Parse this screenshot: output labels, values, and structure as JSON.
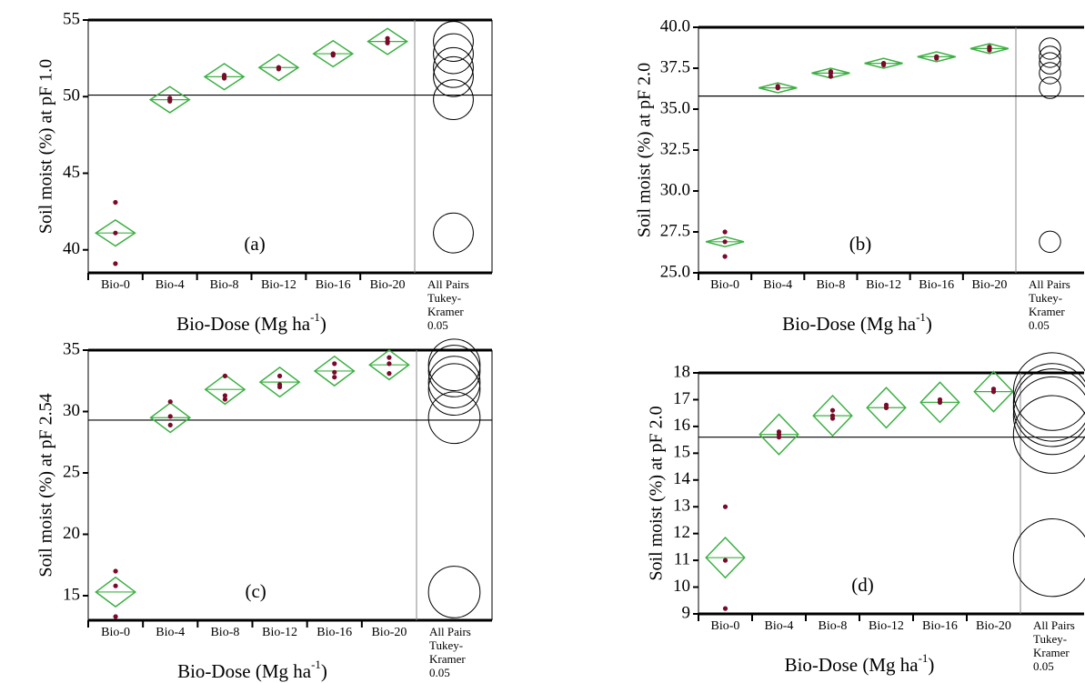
{
  "chart_data": [
    {
      "type": "oneway",
      "ylabel": "Soil moist (%) at pF 1.0",
      "xlabel": "Bio-Dose (Mg ha",
      "xlabel_sup": "-1",
      "xlabel_end": ")",
      "panel_label": "(a)",
      "categories": [
        "Bio-0",
        "Bio-4",
        "Bio-8",
        "Bio-12",
        "Bio-16",
        "Bio-20"
      ],
      "comparison_label": [
        "All Pairs",
        "Tukey-",
        "Kramer",
        "0.05"
      ],
      "means": [
        41.1,
        49.8,
        51.3,
        51.9,
        52.8,
        53.6
      ],
      "ci_half": [
        0.85,
        0.85,
        0.85,
        0.85,
        0.85,
        0.85
      ],
      "points": [
        [
          43.1,
          41.1,
          39.1
        ],
        [
          49.8,
          49.7,
          49.9
        ],
        [
          51.2,
          51.3,
          51.4
        ],
        [
          51.8,
          51.9,
          51.9
        ],
        [
          52.7,
          52.8,
          52.8
        ],
        [
          53.5,
          53.6,
          53.8
        ]
      ],
      "grand_mean": 50.1,
      "circle_radius": 1.3,
      "ylim": [
        38.5,
        55
      ],
      "yticks": [
        40,
        45,
        50,
        55
      ],
      "diamond_color": "#3cb043",
      "point_color": "#7a0a2a"
    },
    {
      "type": "oneway",
      "ylabel": "Soil moist (%) at pF 2.0",
      "xlabel": "Bio-Dose (Mg ha",
      "xlabel_sup": "-1",
      "xlabel_end": ")",
      "panel_label": "(b)",
      "categories": [
        "Bio-0",
        "Bio-4",
        "Bio-8",
        "Bio-12",
        "Bio-16",
        "Bio-20"
      ],
      "comparison_label": [
        "All Pairs",
        "Tukey-",
        "Kramer",
        "0.05"
      ],
      "means": [
        26.9,
        36.3,
        37.2,
        37.8,
        38.2,
        38.7
      ],
      "ci_half": [
        0.3,
        0.3,
        0.3,
        0.3,
        0.3,
        0.3
      ],
      "points": [
        [
          27.5,
          26.9,
          26.0
        ],
        [
          36.3,
          36.3,
          36.4
        ],
        [
          37.0,
          37.2,
          37.3
        ],
        [
          37.7,
          37.8,
          37.8
        ],
        [
          38.1,
          38.2,
          38.2
        ],
        [
          38.6,
          38.7,
          38.8
        ]
      ],
      "grand_mean": 35.8,
      "circle_radius": 0.65,
      "ylim": [
        25,
        40
      ],
      "yticks": [
        {
          "value": 25,
          "label": "25.0"
        },
        {
          "value": 27.5,
          "label": "27.5"
        },
        {
          "value": 30,
          "label": "30.0"
        },
        {
          "value": 32.5,
          "label": "32.5"
        },
        {
          "value": 35,
          "label": "35.0"
        },
        {
          "value": 37.5,
          "label": "37.5"
        },
        {
          "value": 40,
          "label": "40.0"
        }
      ],
      "diamond_color": "#3cb043",
      "point_color": "#7a0a2a"
    },
    {
      "type": "oneway",
      "ylabel": "Soil moist (%) at pF 2.54",
      "xlabel": "Bio-Dose (Mg ha",
      "xlabel_sup": "-1",
      "xlabel_end": ")",
      "panel_label": "(c)",
      "categories": [
        "Bio-0",
        "Bio-4",
        "Bio-8",
        "Bio-12",
        "Bio-16",
        "Bio-20"
      ],
      "comparison_label": [
        "All Pairs",
        "Tukey-",
        "Kramer",
        "0.05"
      ],
      "means": [
        15.3,
        29.5,
        31.8,
        32.4,
        33.3,
        33.8
      ],
      "ci_half": [
        1.2,
        1.2,
        1.2,
        1.2,
        1.2,
        1.2
      ],
      "points": [
        [
          17.0,
          15.8,
          13.3
        ],
        [
          30.8,
          28.9,
          29.6
        ],
        [
          32.9,
          31.3,
          31.0
        ],
        [
          32.9,
          32.2,
          32.0
        ],
        [
          33.9,
          33.2,
          32.8
        ],
        [
          34.4,
          33.9,
          33.1
        ]
      ],
      "grand_mean": 29.3,
      "circle_radius": 2.1,
      "ylim": [
        13,
        35
      ],
      "yticks": [
        15,
        20,
        25,
        30,
        35
      ],
      "diamond_color": "#3cb043",
      "point_color": "#7a0a2a"
    },
    {
      "type": "oneway",
      "ylabel": "Soil moist (%) at pF 2.0",
      "xlabel": "Bio-Dose (Mg ha",
      "xlabel_sup": "-1",
      "xlabel_end": ")",
      "panel_label": "(d)",
      "categories": [
        "Bio-0",
        "Bio-4",
        "Bio-8",
        "Bio-12",
        "Bio-16",
        "Bio-20"
      ],
      "comparison_label": [
        "All Pairs",
        "Tukey-",
        "Kramer",
        "0.05"
      ],
      "means": [
        11.1,
        15.7,
        16.4,
        16.7,
        16.9,
        17.3
      ],
      "ci_half": [
        0.75,
        0.75,
        0.75,
        0.75,
        0.75,
        0.75
      ],
      "points": [
        [
          13.0,
          11.0,
          9.2
        ],
        [
          15.8,
          15.6,
          15.7
        ],
        [
          16.6,
          16.3,
          16.4
        ],
        [
          16.8,
          16.7,
          16.7
        ],
        [
          16.9,
          16.9,
          17.0
        ],
        [
          17.3,
          17.3,
          17.4
        ]
      ],
      "grand_mean": 15.6,
      "circle_radius": 1.45,
      "ylim": [
        9,
        18
      ],
      "yticks": [
        9,
        10,
        11,
        12,
        13,
        14,
        15,
        16,
        17,
        18
      ],
      "diamond_color": "#3cb043",
      "point_color": "#7a0a2a"
    }
  ]
}
